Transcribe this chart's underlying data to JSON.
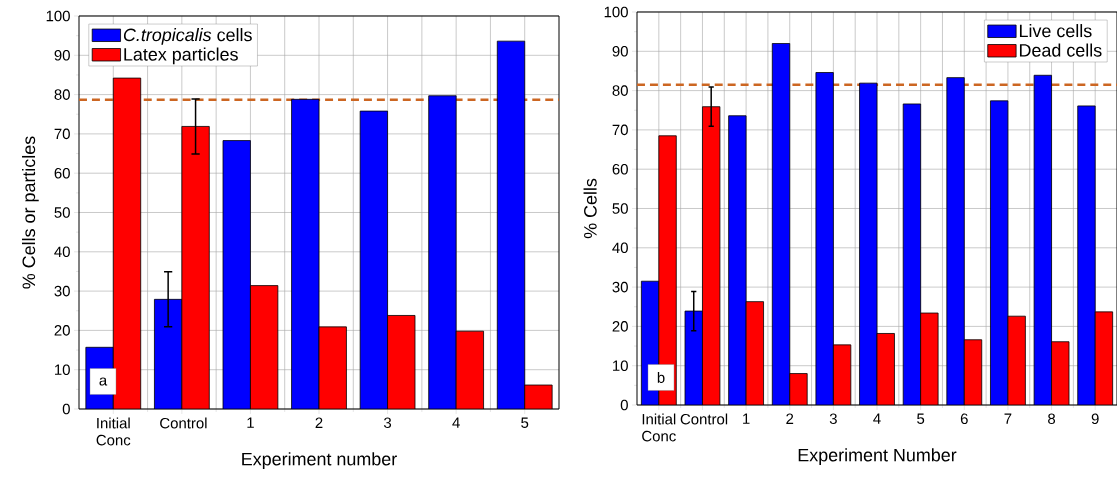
{
  "chart_data": [
    {
      "type": "bar",
      "xlabel": "Experiment number",
      "ylabel": "% Cells or particles",
      "categories": [
        "Initial Conc",
        "Control",
        "1",
        "2",
        "3",
        "4",
        "5"
      ],
      "series": [
        {
          "name": "*C.tropicalis* cells",
          "color": "#0000ff",
          "values": [
            15.7,
            27.9,
            68.3,
            78.8,
            75.8,
            79.7,
            93.6
          ],
          "errors": [
            null,
            7,
            null,
            null,
            null,
            null,
            null
          ]
        },
        {
          "name": "Latex particles",
          "color": "#ff0000",
          "values": [
            84.2,
            71.9,
            31.4,
            20.9,
            23.8,
            19.8,
            6.1
          ],
          "errors": [
            null,
            7,
            null,
            null,
            null,
            null,
            null
          ]
        }
      ],
      "ylim": [
        0,
        100
      ],
      "yticks": [
        0,
        10,
        20,
        30,
        40,
        50,
        60,
        70,
        80,
        90,
        100
      ],
      "grid": true,
      "legend": "top left",
      "ref_lines": [
        {
          "axis": "y",
          "value": 78.7,
          "color": "#cc6622",
          "line_style": "dashed"
        }
      ],
      "annotations": [
        "a"
      ]
    },
    {
      "type": "bar",
      "xlabel": "Experiment Number",
      "ylabel": "% Cells",
      "categories": [
        "Initial Conc",
        "Control",
        "1",
        "2",
        "3",
        "4",
        "5",
        "6",
        "7",
        "8",
        "9"
      ],
      "series": [
        {
          "name": "Live cells",
          "color": "#0000ff",
          "values": [
            31.5,
            23.9,
            73.6,
            92.0,
            84.6,
            81.9,
            76.6,
            83.3,
            77.4,
            83.9,
            76.1
          ],
          "errors": [
            null,
            5,
            null,
            null,
            null,
            null,
            null,
            null,
            null,
            null,
            null
          ]
        },
        {
          "name": "Dead cells",
          "color": "#ff0000",
          "values": [
            68.5,
            75.9,
            26.3,
            8.0,
            15.3,
            18.2,
            23.4,
            16.6,
            22.6,
            16.1,
            23.7
          ],
          "errors": [
            null,
            5,
            null,
            null,
            null,
            null,
            null,
            null,
            null,
            null,
            null
          ]
        }
      ],
      "ylim": [
        0,
        100
      ],
      "yticks": [
        0,
        10,
        20,
        30,
        40,
        50,
        60,
        70,
        80,
        90,
        100
      ],
      "grid": true,
      "legend": "top right",
      "ref_lines": [
        {
          "axis": "y",
          "value": 81.5,
          "color": "#cc6622",
          "line_style": "dashed"
        }
      ],
      "annotations": [
        "b"
      ]
    }
  ]
}
